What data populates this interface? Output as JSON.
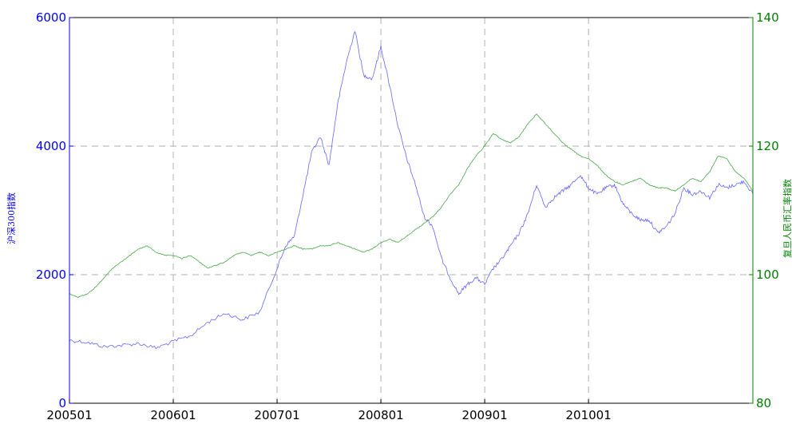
{
  "chart_data": {
    "type": "line",
    "ylabel": "沪深300指数",
    "ylabel_right": "复旦人民币汇率指数",
    "xlabel": "",
    "x_ticks": [
      "200501",
      "200601",
      "200701",
      "200801",
      "200901",
      "201001"
    ],
    "x_range": [
      "200501",
      "201108"
    ],
    "ylim": [
      0,
      6000
    ],
    "ylim_right": [
      80,
      140
    ],
    "y_ticks": [
      "0",
      "2000",
      "4000",
      "6000"
    ],
    "y_ticks_right": [
      "80",
      "100",
      "120",
      "140"
    ],
    "grid": true,
    "colors": {
      "left_axis": "#0000ff",
      "right_axis": "#008000",
      "series1": "#6666ff",
      "series2": "#44aa44"
    },
    "series": [
      {
        "axis": "left",
        "x": [
          "200501",
          "200503",
          "200505",
          "200507",
          "200509",
          "200511",
          "200601",
          "200603",
          "200605",
          "200607",
          "200609",
          "200611",
          "200701",
          "200702",
          "200703",
          "200704",
          "200705",
          "200706",
          "200707",
          "200708",
          "200709",
          "200710",
          "200711",
          "200712",
          "200801",
          "200802",
          "200803",
          "200804",
          "200805",
          "200806",
          "200807",
          "200808",
          "200809",
          "200810",
          "200811",
          "200812",
          "200901",
          "200902",
          "200903",
          "200904",
          "200905",
          "200906",
          "200907",
          "200908",
          "200909",
          "200910",
          "200911",
          "200912",
          "201001",
          "201002",
          "201003",
          "201004",
          "201005",
          "201006",
          "201007",
          "201008",
          "201009",
          "201010",
          "201011",
          "201012",
          "201101",
          "201102",
          "201103",
          "201104",
          "201105",
          "201106",
          "201107",
          "201108"
        ],
        "values": [
          980,
          950,
          880,
          900,
          930,
          860,
          960,
          1050,
          1260,
          1400,
          1300,
          1420,
          2100,
          2450,
          2600,
          3250,
          3900,
          4150,
          3700,
          4650,
          5300,
          5800,
          5100,
          5050,
          5550,
          4950,
          4300,
          3800,
          3400,
          2900,
          2750,
          2250,
          1950,
          1700,
          1850,
          1950,
          1850,
          2100,
          2250,
          2450,
          2650,
          2950,
          3400,
          3050,
          3200,
          3300,
          3400,
          3550,
          3350,
          3250,
          3350,
          3400,
          3100,
          2950,
          2850,
          2850,
          2650,
          2750,
          2950,
          3350,
          3250,
          3300,
          3200,
          3400,
          3350,
          3400,
          3450,
          3250
        ]
      },
      {
        "axis": "right",
        "x": [
          "200501",
          "200502",
          "200503",
          "200504",
          "200505",
          "200506",
          "200507",
          "200508",
          "200509",
          "200510",
          "200511",
          "200512",
          "200601",
          "200602",
          "200603",
          "200604",
          "200605",
          "200606",
          "200607",
          "200608",
          "200609",
          "200610",
          "200611",
          "200612",
          "200701",
          "200702",
          "200703",
          "200704",
          "200705",
          "200706",
          "200707",
          "200708",
          "200709",
          "200710",
          "200711",
          "200712",
          "200801",
          "200802",
          "200803",
          "200804",
          "200805",
          "200806",
          "200807",
          "200808",
          "200809",
          "200810",
          "200811",
          "200812",
          "200901",
          "200902",
          "200903",
          "200904",
          "200905",
          "200906",
          "200907",
          "200908",
          "200909",
          "200910",
          "200911",
          "200912",
          "201001",
          "201002",
          "201003",
          "201004",
          "201005",
          "201006",
          "201007",
          "201008",
          "201009",
          "201010",
          "201011",
          "201012",
          "201101",
          "201102",
          "201103",
          "201104",
          "201105",
          "201106",
          "201107",
          "201108"
        ],
        "values": [
          97,
          96.5,
          97,
          98,
          99.5,
          101,
          102,
          103,
          104,
          104.5,
          103.5,
          103,
          103,
          102.5,
          103,
          102,
          101,
          101.5,
          102,
          103,
          103.5,
          103,
          103.5,
          103,
          103.5,
          104,
          104.5,
          104,
          104,
          104.5,
          104.5,
          105,
          104.5,
          104,
          103.5,
          104,
          105,
          105.5,
          105,
          106,
          107,
          108,
          109,
          110.5,
          112.5,
          114,
          116.5,
          118.5,
          120,
          122,
          121,
          120.5,
          121.5,
          123.5,
          125,
          123.5,
          122,
          120.5,
          119.5,
          118.5,
          118,
          117,
          115.5,
          114.5,
          114,
          114.5,
          115,
          114,
          113.5,
          113.5,
          113,
          114,
          115,
          114.5,
          116,
          118.5,
          118,
          116,
          115,
          113
        ]
      }
    ]
  }
}
